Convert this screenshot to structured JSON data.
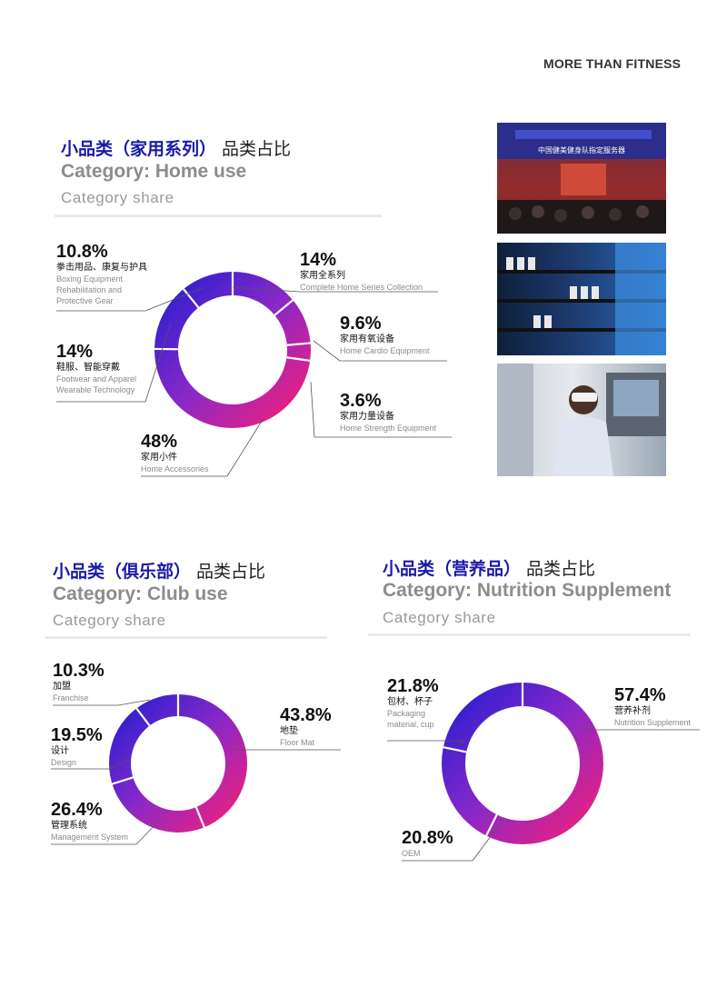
{
  "brand": "MORE THAN FITNESS",
  "sections": [
    {
      "title_cn": "小品类（家用系列）",
      "title_cn_suffix": "品类占比",
      "title_en": "Category:  Home use",
      "subtitle": "Category share"
    },
    {
      "title_cn": "小品类（俱乐部）",
      "title_cn_suffix": "品类占比",
      "title_en": "Category: Club use",
      "subtitle": "Category share"
    },
    {
      "title_cn": "小品类（营养品）",
      "title_cn_suffix": "品类占比",
      "title_en": "Category: Nutrition Supplement",
      "subtitle": "Category share"
    }
  ],
  "photos": [
    "expo-stage-photo",
    "product-shelf-photo",
    "vr-demo-photo"
  ],
  "photo_banner_text": "中国健美健身队指定服务器",
  "colors": {
    "ring_start": "#2a1fd0",
    "ring_mid": "#8a28c8",
    "ring_end": "#f0207a",
    "title_blue": "#1a1aa8"
  },
  "chart_data": [
    {
      "type": "pie",
      "donut": true,
      "slices": [
        {
          "pct": "14%",
          "value": 14,
          "cn": "家用全系列",
          "en": "Complete Home Series Collection"
        },
        {
          "pct": "9.6%",
          "value": 9.6,
          "cn": "家用有氧设备",
          "en": "Home Cardio Equipment"
        },
        {
          "pct": "3.6%",
          "value": 3.6,
          "cn": "家用力量设备",
          "en": "Home Strength Equipment"
        },
        {
          "pct": "48%",
          "value": 48,
          "cn": "家用小件",
          "en": "Home Accessories"
        },
        {
          "pct": "14%",
          "value": 14,
          "cn": "鞋服、智能穿戴",
          "en": "Footwear and Apparel\nWearable Technology"
        },
        {
          "pct": "10.8%",
          "value": 10.8,
          "cn": "拳击用品、康复与护具",
          "en": "Boxing Equipment\nRehabilitation and\nProtective Gear"
        }
      ]
    },
    {
      "type": "pie",
      "donut": true,
      "slices": [
        {
          "pct": "43.8%",
          "value": 43.8,
          "cn": "地垫",
          "en": "Floor Mat"
        },
        {
          "pct": "26.4%",
          "value": 26.4,
          "cn": "管理系统",
          "en": "Management System"
        },
        {
          "pct": "19.5%",
          "value": 19.5,
          "cn": "设计",
          "en": "Design"
        },
        {
          "pct": "10.3%",
          "value": 10.3,
          "cn": "加盟",
          "en": "Franchise"
        }
      ]
    },
    {
      "type": "pie",
      "donut": true,
      "slices": [
        {
          "pct": "57.4%",
          "value": 57.4,
          "cn": "营养补剂",
          "en": "Nutrition Supplement"
        },
        {
          "pct": "20.8%",
          "value": 20.8,
          "cn": "",
          "en": "OEM"
        },
        {
          "pct": "21.8%",
          "value": 21.8,
          "cn": "包材、杯子",
          "en": "Packaging\nmaterial, cup"
        }
      ]
    }
  ]
}
